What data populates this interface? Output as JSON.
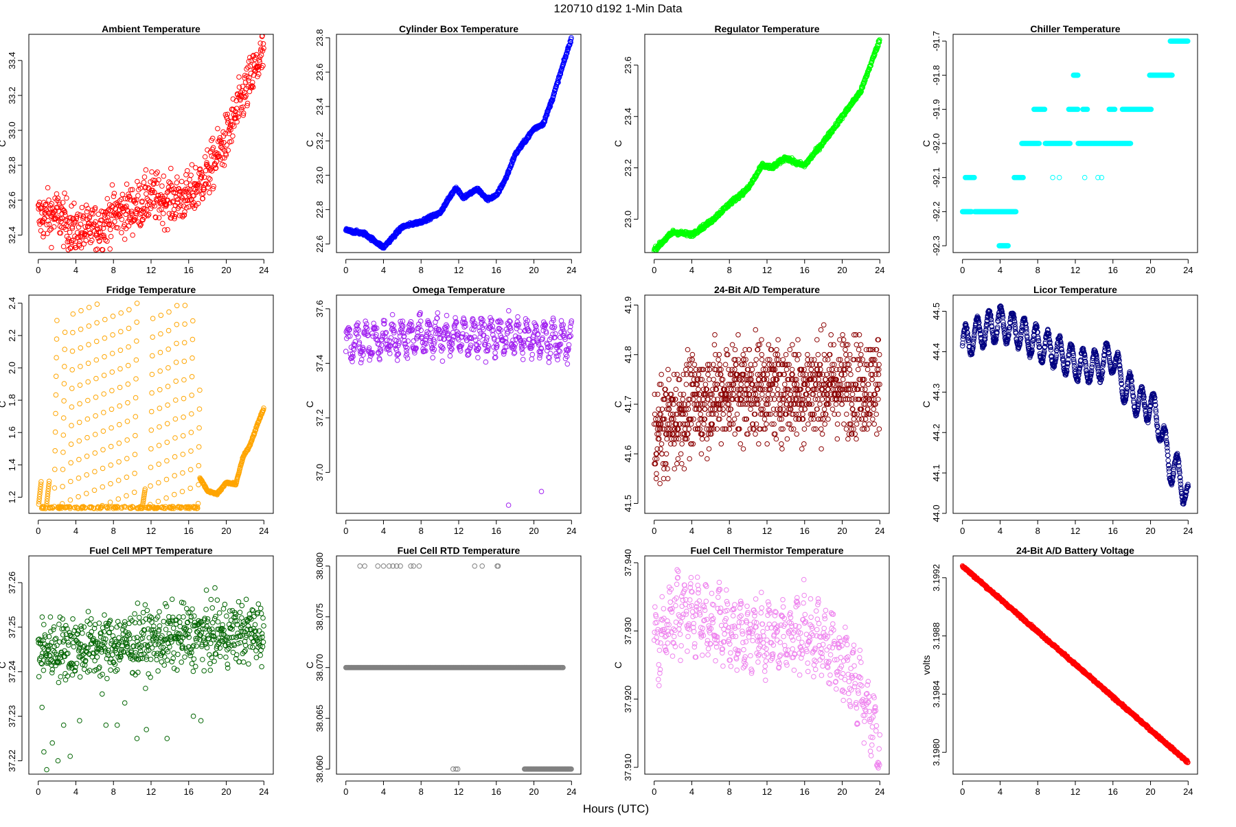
{
  "figure_title": "120710    d192    1-Min Data",
  "xlabel": "Hours (UTC)",
  "chart_data": [
    {
      "type": "scatter",
      "title": "Ambient Temperature",
      "ylabel": "C",
      "color": "#ff0000",
      "xlim": [
        -1,
        25
      ],
      "ylim": [
        32.3,
        33.55
      ],
      "yticks": [
        32.4,
        32.6,
        32.8,
        33.0,
        33.2,
        33.4
      ],
      "yticklabels": [
        "32.4",
        "32.6",
        "32.8",
        "33.0",
        "33.2",
        "33.4"
      ],
      "kind": "noisy",
      "shape": [
        [
          0,
          32.5
        ],
        [
          2,
          32.52
        ],
        [
          4,
          32.42
        ],
        [
          6,
          32.43
        ],
        [
          8,
          32.52
        ],
        [
          10,
          32.55
        ],
        [
          12,
          32.62
        ],
        [
          14,
          32.6
        ],
        [
          16,
          32.62
        ],
        [
          18,
          32.75
        ],
        [
          20,
          32.95
        ],
        [
          22,
          33.22
        ],
        [
          24,
          33.45
        ]
      ],
      "noise": 0.07
    },
    {
      "type": "scatter",
      "title": "Cylinder Box Temperature",
      "ylabel": "C",
      "color": "#0000ff",
      "xlim": [
        -1,
        25
      ],
      "ylim": [
        22.55,
        23.82
      ],
      "yticks": [
        22.6,
        22.8,
        23.0,
        23.2,
        23.4,
        23.6,
        23.8
      ],
      "yticklabels": [
        "22.6",
        "22.8",
        "23.0",
        "23.2",
        "23.4",
        "23.6",
        "23.8"
      ],
      "kind": "smooth",
      "shape": [
        [
          0,
          22.68
        ],
        [
          2,
          22.66
        ],
        [
          4,
          22.58
        ],
        [
          6,
          22.7
        ],
        [
          8,
          22.73
        ],
        [
          10,
          22.78
        ],
        [
          11.7,
          22.93
        ],
        [
          12.5,
          22.87
        ],
        [
          14,
          22.92
        ],
        [
          15,
          22.86
        ],
        [
          16,
          22.88
        ],
        [
          17,
          22.98
        ],
        [
          18,
          23.12
        ],
        [
          20,
          23.27
        ],
        [
          21,
          23.3
        ],
        [
          22,
          23.45
        ],
        [
          24,
          23.8
        ]
      ],
      "noise": 0.005
    },
    {
      "type": "scatter",
      "title": "Regulator Temperature",
      "ylabel": "C",
      "color": "#00ff00",
      "xlim": [
        -1,
        25
      ],
      "ylim": [
        22.87,
        23.72
      ],
      "yticks": [
        23.0,
        23.2,
        23.4,
        23.6
      ],
      "yticklabels": [
        "23.0",
        "23.2",
        "23.4",
        "23.6"
      ],
      "kind": "smooth",
      "shape": [
        [
          0,
          22.88
        ],
        [
          2,
          22.95
        ],
        [
          4,
          22.94
        ],
        [
          6,
          22.99
        ],
        [
          8,
          23.06
        ],
        [
          10,
          23.12
        ],
        [
          11.5,
          23.21
        ],
        [
          12.5,
          23.2
        ],
        [
          14,
          23.24
        ],
        [
          15,
          23.22
        ],
        [
          16,
          23.21
        ],
        [
          18,
          23.3
        ],
        [
          20,
          23.4
        ],
        [
          22,
          23.5
        ],
        [
          24,
          23.7
        ]
      ],
      "noise": 0.004
    },
    {
      "type": "scatter",
      "title": "Chiller Temperature",
      "ylabel": "C",
      "color": "#00ffff",
      "xlim": [
        -1,
        25
      ],
      "ylim": [
        -92.32,
        -91.68
      ],
      "yticks": [
        -92.3,
        -92.2,
        -92.1,
        -92.0,
        -91.9,
        -91.8,
        -91.7
      ],
      "yticklabels": [
        "-92.3",
        "-92.2",
        "-92.1",
        "-92.0",
        "-91.9",
        "-91.8",
        "-91.7"
      ],
      "kind": "segments",
      "segments": [
        [
          0,
          1,
          -92.2
        ],
        [
          0.3,
          1.3,
          -92.1
        ],
        [
          1.3,
          5.7,
          -92.2
        ],
        [
          3.9,
          4.9,
          -92.3
        ],
        [
          5.5,
          6.5,
          -92.1
        ],
        [
          6.3,
          8.2,
          -92.0
        ],
        [
          7.6,
          8.8,
          -91.9
        ],
        [
          8.8,
          11.5,
          -92.0
        ],
        [
          11.3,
          12.3,
          -91.9
        ],
        [
          11.8,
          12.3,
          -91.8
        ],
        [
          12.3,
          17.9,
          -92.0
        ],
        [
          12.8,
          13.3,
          -91.9
        ],
        [
          15.6,
          16.2,
          -91.9
        ],
        [
          17.0,
          20.1,
          -91.9
        ],
        [
          19.9,
          22.3,
          -91.8
        ],
        [
          22.1,
          24,
          -91.7
        ]
      ],
      "points": [
        [
          9.6,
          -92.1
        ],
        [
          10.3,
          -92.1
        ],
        [
          13.0,
          -92.1
        ],
        [
          14.4,
          -92.1
        ],
        [
          14.8,
          -92.1
        ]
      ]
    },
    {
      "type": "scatter",
      "title": "Fridge Temperature",
      "ylabel": "C",
      "color": "#ffa500",
      "xlim": [
        -1,
        25
      ],
      "ylim": [
        1.1,
        2.45
      ],
      "yticks": [
        1.2,
        1.4,
        1.6,
        1.8,
        2.0,
        2.2,
        2.4
      ],
      "yticklabels": [
        "1.2",
        "1.4",
        "1.6",
        "1.8",
        "2.0",
        "2.2",
        "2.4"
      ],
      "kind": "fridge",
      "shape": [
        [
          17.2,
          1.32
        ],
        [
          18.0,
          1.24
        ],
        [
          19.0,
          1.22
        ],
        [
          20.0,
          1.29
        ],
        [
          21.0,
          1.28
        ],
        [
          21.8,
          1.45
        ],
        [
          22.5,
          1.52
        ],
        [
          23.5,
          1.68
        ],
        [
          24,
          1.75
        ]
      ],
      "noise": 0.003
    },
    {
      "type": "scatter",
      "title": "Omega Temperature",
      "ylabel": "C",
      "color": "#a020f0",
      "xlim": [
        -1,
        25
      ],
      "ylim": [
        36.85,
        37.65
      ],
      "yticks": [
        37.0,
        37.2,
        37.4,
        37.6
      ],
      "yticklabels": [
        "37.0",
        "37.2",
        "37.4",
        "37.6"
      ],
      "kind": "osc",
      "shape": [
        [
          0,
          37.47
        ],
        [
          4,
          37.49
        ],
        [
          8,
          37.5
        ],
        [
          12,
          37.5
        ],
        [
          16,
          37.5
        ],
        [
          20,
          37.49
        ],
        [
          24,
          37.48
        ]
      ],
      "period": 0.95,
      "amp": 0.05,
      "noise": 0.02,
      "points": [
        [
          17.3,
          36.88
        ],
        [
          20.8,
          36.93
        ]
      ]
    },
    {
      "type": "scatter",
      "title": "24-Bit A/D Temperature",
      "ylabel": "C",
      "color": "#8b0000",
      "xlim": [
        -1,
        25
      ],
      "ylim": [
        41.48,
        41.92
      ],
      "yticks": [
        41.5,
        41.6,
        41.7,
        41.8,
        41.9
      ],
      "yticklabels": [
        "41.5",
        "41.6",
        "41.7",
        "41.8",
        "41.9"
      ],
      "kind": "quant",
      "shape": [
        [
          0,
          41.64
        ],
        [
          4,
          41.7
        ],
        [
          8,
          41.73
        ],
        [
          12,
          41.73
        ],
        [
          16,
          41.73
        ],
        [
          20,
          41.74
        ],
        [
          24,
          41.74
        ]
      ],
      "step": 0.01,
      "noise": 0.09
    },
    {
      "type": "scatter",
      "title": "Licor Temperature",
      "ylabel": "C",
      "color": "#000080",
      "xlim": [
        -1,
        25
      ],
      "ylim": [
        44.0,
        44.54
      ],
      "yticks": [
        44.0,
        44.1,
        44.2,
        44.3,
        44.4,
        44.5
      ],
      "yticklabels": [
        "44.0",
        "44.1",
        "44.2",
        "44.3",
        "44.4",
        "44.5"
      ],
      "kind": "stepsmooth",
      "shape": [
        [
          0,
          44.42
        ],
        [
          2,
          44.45
        ],
        [
          4,
          44.47
        ],
        [
          6,
          44.45
        ],
        [
          8,
          44.42
        ],
        [
          10,
          44.4
        ],
        [
          12,
          44.37
        ],
        [
          14,
          44.36
        ],
        [
          16,
          44.39
        ],
        [
          17,
          44.32
        ],
        [
          18,
          44.3
        ],
        [
          19,
          44.27
        ],
        [
          20,
          44.27
        ],
        [
          21,
          44.22
        ],
        [
          22,
          44.12
        ],
        [
          23,
          44.1
        ],
        [
          24,
          44.03
        ]
      ],
      "period": 1.25,
      "amp": 0.04,
      "noise": 0.003
    },
    {
      "type": "scatter",
      "title": "Fuel Cell MPT Temperature",
      "ylabel": "C",
      "color": "#006400",
      "xlim": [
        -1,
        25
      ],
      "ylim": [
        37.217,
        37.266
      ],
      "yticks": [
        37.22,
        37.23,
        37.24,
        37.25,
        37.26
      ],
      "yticklabels": [
        "37.22",
        "37.23",
        "37.24",
        "37.25",
        "37.26"
      ],
      "kind": "noisy",
      "shape": [
        [
          0,
          37.245
        ],
        [
          8,
          37.246
        ],
        [
          16,
          37.248
        ],
        [
          24,
          37.249
        ]
      ],
      "noise": 0.0035,
      "points": [
        [
          0.6,
          37.222
        ],
        [
          0.9,
          37.218
        ],
        [
          1.5,
          37.224
        ],
        [
          2.1,
          37.22
        ],
        [
          3.4,
          37.221
        ],
        [
          0.4,
          37.232
        ],
        [
          2.7,
          37.228
        ],
        [
          4.4,
          37.229
        ],
        [
          7.2,
          37.228
        ],
        [
          8.4,
          37.228
        ],
        [
          10.5,
          37.225
        ],
        [
          11.5,
          37.227
        ],
        [
          13.7,
          37.225
        ],
        [
          16.5,
          37.23
        ],
        [
          17.3,
          37.229
        ],
        [
          9.2,
          37.233
        ],
        [
          6.8,
          37.235
        ]
      ]
    },
    {
      "type": "scatter",
      "title": "Fuel Cell RTD Temperature",
      "ylabel": "C",
      "color": "#808080",
      "xlim": [
        -1,
        25
      ],
      "ylim": [
        38.0595,
        38.081
      ],
      "yticks": [
        38.06,
        38.065,
        38.07,
        38.075,
        38.08
      ],
      "yticklabels": [
        "38.060",
        "38.065",
        "38.070",
        "38.075",
        "38.080"
      ],
      "kind": "segments",
      "segments": [
        [
          0,
          23.1,
          38.07
        ],
        [
          19.0,
          24,
          38.06
        ]
      ],
      "points": [
        [
          1.5,
          38.08
        ],
        [
          2.0,
          38.08
        ],
        [
          3.4,
          38.08
        ],
        [
          4.0,
          38.08
        ],
        [
          4.6,
          38.08
        ],
        [
          5.0,
          38.08
        ],
        [
          5.4,
          38.08
        ],
        [
          5.8,
          38.08
        ],
        [
          6.9,
          38.08
        ],
        [
          7.2,
          38.08
        ],
        [
          7.8,
          38.08
        ],
        [
          13.7,
          38.08
        ],
        [
          14.5,
          38.08
        ],
        [
          16.1,
          38.08
        ],
        [
          16.2,
          38.08
        ],
        [
          11.4,
          38.06
        ],
        [
          11.7,
          38.06
        ],
        [
          11.9,
          38.06
        ]
      ]
    },
    {
      "type": "scatter",
      "title": "Fuel Cell Thermistor Temperature",
      "ylabel": "C",
      "color": "#ee82ee",
      "xlim": [
        -1,
        25
      ],
      "ylim": [
        37.909,
        37.941
      ],
      "yticks": [
        37.91,
        37.92,
        37.93,
        37.94
      ],
      "yticklabels": [
        "37.910",
        "37.920",
        "37.930",
        "37.940"
      ],
      "kind": "osc",
      "shape": [
        [
          0,
          37.928
        ],
        [
          2,
          37.932
        ],
        [
          4,
          37.933
        ],
        [
          8,
          37.93
        ],
        [
          12,
          37.929
        ],
        [
          16,
          37.93
        ],
        [
          18,
          37.928
        ],
        [
          20,
          37.926
        ],
        [
          22,
          37.921
        ],
        [
          24,
          37.914
        ]
      ],
      "period": 0.75,
      "amp": 0.0035,
      "noise": 0.0018
    },
    {
      "type": "scatter",
      "title": "24-Bit A/D Battery Voltage",
      "ylabel": "volts",
      "color": "#ff0000",
      "xlim": [
        -1,
        25
      ],
      "ylim": [
        3.19785,
        3.19935
      ],
      "yticks": [
        3.198,
        3.1984,
        3.1988,
        3.1992
      ],
      "yticklabels": [
        "3.1980",
        "3.1984",
        "3.1988",
        "3.1992"
      ],
      "kind": "smooth",
      "shape": [
        [
          0,
          3.19928
        ],
        [
          24,
          3.19793
        ]
      ],
      "noise": 4e-06
    }
  ]
}
